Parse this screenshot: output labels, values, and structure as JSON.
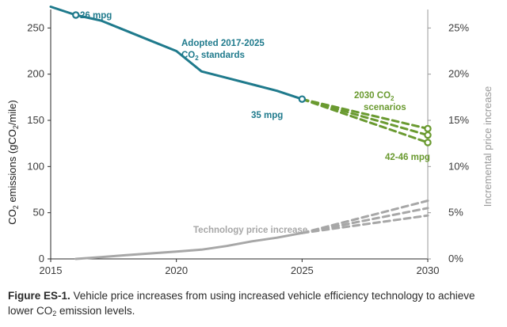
{
  "chart_data": {
    "type": "line",
    "x_ticks": [
      "2015",
      "2020",
      "2025",
      "2030"
    ],
    "xlim": [
      2015,
      2030
    ],
    "y_left_ticks": [
      "0",
      "50",
      "100",
      "150",
      "200",
      "250"
    ],
    "ylim_left": [
      0,
      270
    ],
    "y_right_ticks": [
      "0%",
      "5%",
      "10%",
      "15%",
      "20%",
      "25%"
    ],
    "ylim_right": [
      0,
      0.27
    ],
    "ylabel_left_parts": [
      "CO",
      "2",
      " emissions (gCO",
      "2",
      "/mile)"
    ],
    "ylabel_right": "Incremental price increase",
    "series": [
      {
        "axis": "left",
        "style": "solid",
        "color": "#1f7a8c",
        "x": [
          2015,
          2016,
          2017,
          2018,
          2019,
          2020,
          2021,
          2022,
          2023,
          2024,
          2025
        ],
        "y": [
          273,
          264,
          258,
          247,
          236,
          225,
          203,
          196,
          189,
          182,
          173
        ],
        "markers": [
          {
            "x": 2016,
            "y": 264
          },
          {
            "x": 2025,
            "y": 173
          }
        ]
      },
      {
        "axis": "left",
        "style": "dashed",
        "color": "#6a9a30",
        "x": [
          2025,
          2030
        ],
        "y": [
          173,
          141
        ],
        "markers": [
          {
            "x": 2030,
            "y": 141
          }
        ]
      },
      {
        "axis": "left",
        "style": "dashed",
        "color": "#6a9a30",
        "x": [
          2025,
          2030
        ],
        "y": [
          173,
          134
        ],
        "markers": [
          {
            "x": 2030,
            "y": 134
          }
        ]
      },
      {
        "axis": "left",
        "style": "dashed",
        "color": "#6a9a30",
        "x": [
          2025,
          2030
        ],
        "y": [
          173,
          126
        ],
        "markers": [
          {
            "x": 2030,
            "y": 126
          }
        ]
      },
      {
        "axis": "right",
        "style": "solid",
        "color": "#a7a7a7",
        "x": [
          2016,
          2017,
          2018,
          2019,
          2020,
          2021,
          2022,
          2023,
          2024,
          2025
        ],
        "y": [
          0.0,
          0.002,
          0.004,
          0.006,
          0.008,
          0.01,
          0.014,
          0.019,
          0.023,
          0.028
        ]
      },
      {
        "axis": "right",
        "style": "dashed",
        "color": "#a7a7a7",
        "x": [
          2025,
          2030
        ],
        "y": [
          0.028,
          0.063
        ]
      },
      {
        "axis": "right",
        "style": "dashed",
        "color": "#a7a7a7",
        "x": [
          2025,
          2030
        ],
        "y": [
          0.028,
          0.055
        ]
      },
      {
        "axis": "right",
        "style": "dashed",
        "color": "#a7a7a7",
        "x": [
          2025,
          2030
        ],
        "y": [
          0.028,
          0.047
        ]
      }
    ],
    "annotations": {
      "mpg_2016": "26 mpg",
      "adopted_line1": "Adopted 2017-2025",
      "adopted_line2_parts": [
        "CO",
        "2",
        " standards"
      ],
      "mpg_2025": "35 mpg",
      "scenarios_line1_parts": [
        "2030 CO",
        "2"
      ],
      "scenarios_line2": "scenarios",
      "mpg_2030": "42-46 mpg",
      "tech_price": "Technology price increase"
    }
  },
  "caption": {
    "label": "Figure ES-1.",
    "text_before_sub": " Vehicle price increases from using increased vehicle efficiency technology to achieve lower CO",
    "sub": "2",
    "text_after_sub": " emission levels."
  }
}
